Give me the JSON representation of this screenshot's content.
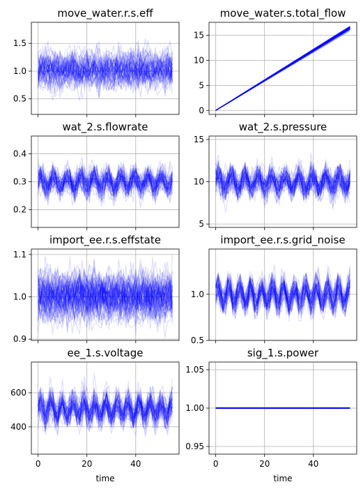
{
  "chart_data": [
    {
      "type": "line",
      "title": "move_water.r.s.eff",
      "xlabel": "",
      "ylim": [
        0.22,
        1.88
      ],
      "yticks": [
        0.5,
        1.0,
        1.5
      ],
      "yticklabels": [
        "0.5",
        "1.0",
        "1.5"
      ],
      "xlim": [
        -2.75,
        57.75
      ],
      "xticks": [
        0,
        20,
        40
      ],
      "xticklabels": [],
      "grid": true,
      "color": "#0000ff",
      "x_range": [
        0,
        55
      ],
      "signal": {
        "kind": "noise",
        "mean": 1.0,
        "amp": 0.0,
        "period": 1,
        "noise": 0.14,
        "spread": 0.1,
        "count": 60
      },
      "series_summary": {
        "mean": 1.0,
        "min": 0.35,
        "max": 1.8
      }
    },
    {
      "type": "line",
      "title": "move_water.s.total_flow",
      "xlabel": "",
      "ylim": [
        -0.8,
        17.6
      ],
      "yticks": [
        0,
        5,
        10,
        15
      ],
      "yticklabels": [
        "0",
        "5",
        "10",
        "15"
      ],
      "xlim": [
        -2.75,
        57.75
      ],
      "xticks": [
        0,
        20,
        40
      ],
      "xticklabels": [],
      "grid": true,
      "color": "#0000ff",
      "x_range": [
        0,
        55
      ],
      "signal": {
        "kind": "ramp",
        "start": 0,
        "end": 16.5,
        "spread": 0.25,
        "count": 40
      },
      "series_summary": {
        "start": 0.0,
        "end_min": 16.2,
        "end_max": 16.8
      }
    },
    {
      "type": "line",
      "title": "wat_2.s.flowrate",
      "xlabel": "",
      "ylim": [
        0.137,
        0.463
      ],
      "yticks": [
        0.2,
        0.3,
        0.4
      ],
      "yticklabels": [
        "0.2",
        "0.3",
        "0.4"
      ],
      "xlim": [
        -2.75,
        57.75
      ],
      "xticks": [
        0,
        20,
        40
      ],
      "xticklabels": [],
      "grid": true,
      "color": "#0000ff",
      "x_range": [
        0,
        55
      ],
      "signal": {
        "kind": "periodic",
        "mean": 0.3,
        "amp": 0.022,
        "period": 5.5,
        "noise": 0.02,
        "spread": 0.012,
        "count": 60
      },
      "series_summary": {
        "mean": 0.3,
        "min": 0.15,
        "max": 0.45
      }
    },
    {
      "type": "line",
      "title": "wat_2.s.pressure",
      "xlabel": "",
      "ylim": [
        4.6,
        15.4
      ],
      "yticks": [
        5,
        10,
        15
      ],
      "yticklabels": [
        "5",
        "10",
        "15"
      ],
      "xlim": [
        -2.75,
        57.75
      ],
      "xticks": [
        0,
        20,
        40
      ],
      "xticklabels": [],
      "grid": true,
      "color": "#0000ff",
      "x_range": [
        0,
        55
      ],
      "signal": {
        "kind": "periodic",
        "mean": 10.0,
        "amp": 0.8,
        "period": 5.5,
        "noise": 0.7,
        "spread": 0.4,
        "count": 60
      },
      "series_summary": {
        "mean": 10.0,
        "min": 5.0,
        "max": 15.0
      }
    },
    {
      "type": "line",
      "title": "import_ee.r.s.effstate",
      "xlabel": "",
      "ylim": [
        0.897,
        1.113
      ],
      "yticks": [
        0.9,
        1.0,
        1.1
      ],
      "yticklabels": [
        "0.9",
        "1.0",
        "1.1"
      ],
      "xlim": [
        -2.75,
        57.75
      ],
      "xticks": [
        0,
        20,
        40
      ],
      "xticklabels": [],
      "grid": true,
      "color": "#0000ff",
      "x_range": [
        0,
        55
      ],
      "signal": {
        "kind": "noise",
        "mean": 1.0,
        "amp": 0.0,
        "period": 1,
        "noise": 0.022,
        "spread": 0.018,
        "count": 80
      },
      "series_summary": {
        "mean": 1.0,
        "min": 0.905,
        "max": 1.105
      }
    },
    {
      "type": "line",
      "title": "import_ee.r.s.grid_noise",
      "xlabel": "",
      "ylim": [
        0.5,
        1.49
      ],
      "yticks": [
        0.5,
        1.0
      ],
      "yticklabels": [
        "0.5",
        "1.0"
      ],
      "xlim": [
        -2.75,
        57.75
      ],
      "xticks": [
        0,
        20,
        40
      ],
      "xticklabels": [],
      "grid": true,
      "color": "#0000ff",
      "x_range": [
        0,
        55
      ],
      "signal": {
        "kind": "periodic",
        "mean": 1.0,
        "amp": 0.1,
        "period": 4.5,
        "noise": 0.06,
        "spread": 0.04,
        "count": 60
      },
      "series_summary": {
        "mean": 1.0,
        "min": 0.62,
        "max": 1.42
      }
    },
    {
      "type": "line",
      "title": "ee_1.s.voltage",
      "xlabel": "time",
      "ylim": [
        240,
        780
      ],
      "yticks": [
        400,
        600
      ],
      "yticklabels": [
        "400",
        "600"
      ],
      "xlim": [
        -2.75,
        57.75
      ],
      "xticks": [
        0,
        20,
        40
      ],
      "xticklabels": [
        "0",
        "20",
        "40"
      ],
      "grid": true,
      "color": "#0000ff",
      "x_range": [
        0,
        55
      ],
      "signal": {
        "kind": "periodic",
        "mean": 500,
        "amp": 45,
        "period": 4.5,
        "noise": 35,
        "spread": 20,
        "count": 60
      },
      "series_summary": {
        "mean": 500,
        "min": 290,
        "max": 740
      }
    },
    {
      "type": "line",
      "title": "sig_1.s.power",
      "xlabel": "time",
      "ylim": [
        0.94,
        1.06
      ],
      "yticks": [
        0.95,
        1.0,
        1.05
      ],
      "yticklabels": [
        "0.95",
        "1.00",
        "1.05"
      ],
      "xlim": [
        -2.75,
        57.75
      ],
      "xticks": [
        0,
        20,
        40
      ],
      "xticklabels": [
        "0",
        "20",
        "40"
      ],
      "grid": true,
      "color": "#0000ff",
      "x_range": [
        0,
        55
      ],
      "signal": {
        "kind": "const",
        "value": 1.0,
        "count": 1
      },
      "series_summary": {
        "value": 1.0
      }
    }
  ]
}
